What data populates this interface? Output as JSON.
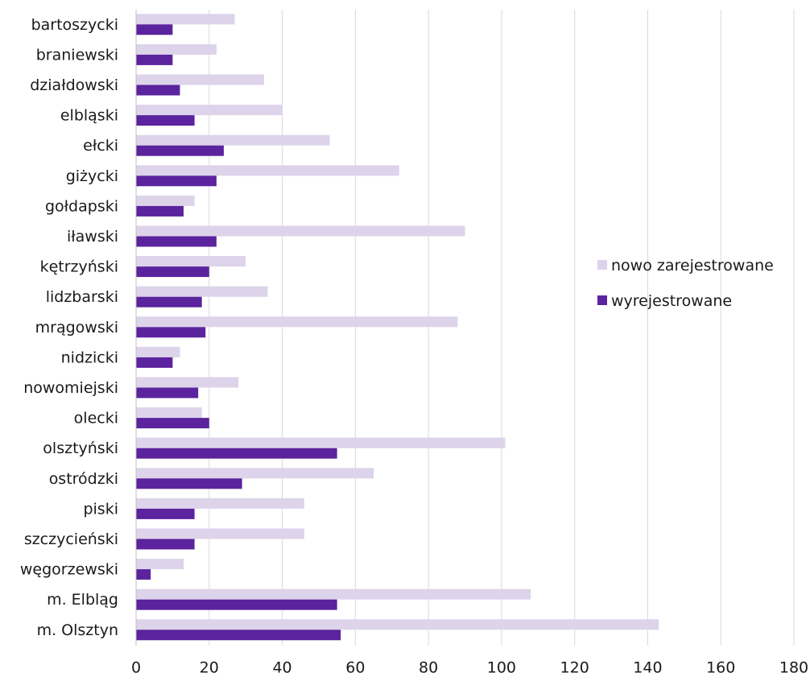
{
  "chart_data": {
    "type": "bar",
    "orientation": "horizontal",
    "categories": [
      "bartoszycki",
      "braniewski",
      "działdowski",
      "elbląski",
      "ełcki",
      "giżycki",
      "gołdapski",
      "iławski",
      "kętrzyński",
      "lidzbarski",
      "mrągowski",
      "nidzicki",
      "nowomiejski",
      "olecki",
      "olsztyński",
      "ostródzki",
      "piski",
      "szczycieński",
      "węgorzewski",
      "m. Elbląg",
      "m. Olsztyn"
    ],
    "series": [
      {
        "name": "nowo zarejestrowane",
        "color": "#ddd3ea",
        "values": [
          27,
          22,
          35,
          40,
          53,
          72,
          16,
          90,
          30,
          36,
          88,
          12,
          28,
          18,
          101,
          65,
          46,
          46,
          13,
          108,
          143
        ]
      },
      {
        "name": "wyrejestrowane",
        "color": "#5b239d",
        "values": [
          10,
          10,
          12,
          16,
          24,
          22,
          13,
          22,
          20,
          18,
          19,
          10,
          17,
          20,
          55,
          29,
          16,
          16,
          4,
          55,
          56
        ]
      }
    ],
    "xlim": [
      0,
      180
    ],
    "xticks": [
      0,
      20,
      40,
      60,
      80,
      100,
      120,
      140,
      160,
      180
    ],
    "grid": "vertical",
    "legend": "right-middle",
    "title": "",
    "xlabel": "",
    "ylabel": ""
  }
}
